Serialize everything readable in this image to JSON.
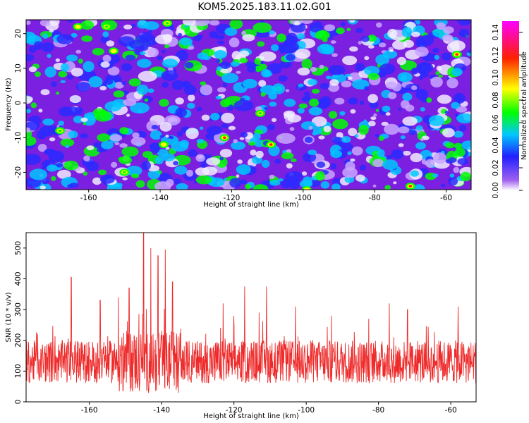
{
  "figure": {
    "title": "KOM5.2025.183.11.02.G01"
  },
  "chart_data": [
    {
      "type": "heatmap",
      "xlabel": "Height of straight line (km)",
      "ylabel": "Frequency (Hz)",
      "xlim": [
        -177.5,
        -53
      ],
      "ylim": [
        -25,
        24
      ],
      "xticks": [
        -160,
        -140,
        -120,
        -100,
        -80,
        -60
      ],
      "yticks": [
        -20,
        -10,
        0,
        10,
        20
      ],
      "colorbar": {
        "label": "Normalized spectral amplitude",
        "range": [
          0,
          0.15
        ],
        "ticks": [
          "0.00",
          "0.02",
          "0.04",
          "0.06",
          "0.08",
          "0.10",
          "0.12",
          "0.14"
        ],
        "tick_values": [
          0,
          0.02,
          0.04,
          0.06,
          0.08,
          0.1,
          0.12,
          0.14
        ],
        "colormap": [
          "#ffffff",
          "#8a2be2",
          "#2020ff",
          "#00c8ff",
          "#00ff00",
          "#ffff00",
          "#ff2000",
          "#ff00ff"
        ]
      },
      "hotspots": [
        {
          "x": -163,
          "y": 22,
          "amp": 0.11
        },
        {
          "x": -155,
          "y": 22,
          "amp": 0.09
        },
        {
          "x": -153,
          "y": 15,
          "amp": 0.11
        },
        {
          "x": -138,
          "y": 23,
          "amp": 0.09
        },
        {
          "x": -122,
          "y": -10,
          "amp": 0.13
        },
        {
          "x": -109,
          "y": -12,
          "amp": 0.13
        },
        {
          "x": -139,
          "y": -12,
          "amp": 0.1
        },
        {
          "x": -112,
          "y": -3,
          "amp": 0.09
        },
        {
          "x": -57,
          "y": 14,
          "amp": 0.12
        },
        {
          "x": -70,
          "y": -24,
          "amp": 0.12
        },
        {
          "x": -99,
          "y": -25,
          "amp": 0.1
        },
        {
          "x": -168,
          "y": -8,
          "amp": 0.08
        },
        {
          "x": -150,
          "y": -20,
          "amp": 0.08
        }
      ]
    },
    {
      "type": "line",
      "xlabel": "Height of straight line (km)",
      "ylabel": "SNR (10 * v/v)",
      "xlim": [
        -177.5,
        -53
      ],
      "ylim": [
        0,
        550
      ],
      "xticks": [
        -160,
        -140,
        -120,
        -100,
        -80,
        -60
      ],
      "yticks": [
        0,
        100,
        200,
        300,
        400,
        500
      ],
      "series": [
        {
          "color": "#ee2a2a",
          "baseline": 130,
          "peaks": [
            {
              "x": -165,
              "y": 405
            },
            {
              "x": -157,
              "y": 330
            },
            {
              "x": -152,
              "y": 340
            },
            {
              "x": -149,
              "y": 370
            },
            {
              "x": -145,
              "y": 550
            },
            {
              "x": -143,
              "y": 500
            },
            {
              "x": -141,
              "y": 475
            },
            {
              "x": -139,
              "y": 495
            },
            {
              "x": -137,
              "y": 390
            },
            {
              "x": -123,
              "y": 320
            },
            {
              "x": -117,
              "y": 375
            },
            {
              "x": -113,
              "y": 290
            },
            {
              "x": -111,
              "y": 375
            },
            {
              "x": -103,
              "y": 310
            },
            {
              "x": -93,
              "y": 280
            },
            {
              "x": -77,
              "y": 320
            },
            {
              "x": -72,
              "y": 300
            },
            {
              "x": -58,
              "y": 310
            }
          ]
        }
      ]
    }
  ]
}
